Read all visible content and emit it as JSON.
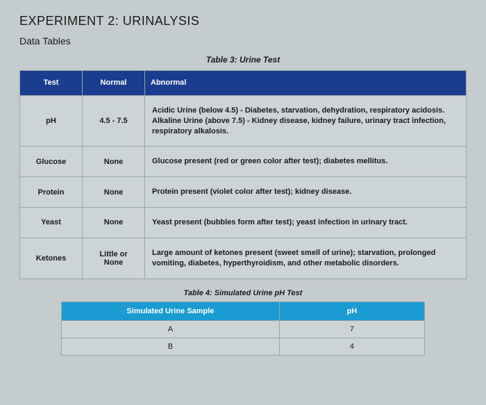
{
  "page": {
    "heading": "EXPERIMENT 2: URINALYSIS",
    "subheading": "Data Tables"
  },
  "table3": {
    "title": "Table 3: Urine Test",
    "header_bg": "#1a3d8f",
    "header_color": "#ffffff",
    "border_color": "#9aa4a7",
    "cell_bg": "#cdd4d6",
    "columns": [
      "Test",
      "Normal",
      "Abnormal"
    ],
    "rows": [
      {
        "test": "pH",
        "normal": "4.5 - 7.5",
        "abnormal": "Acidic Urine (below 4.5) - Diabetes, starvation, dehydration, respiratory acidosis.\nAlkaline Urine (above 7.5) - Kidney disease, kidney failure, urinary tract infection, respiratory alkalosis."
      },
      {
        "test": "Glucose",
        "normal": "None",
        "abnormal": "Glucose present (red or green color after test); diabetes mellitus."
      },
      {
        "test": "Protein",
        "normal": "None",
        "abnormal": "Protein present (violet color after test); kidney disease."
      },
      {
        "test": "Yeast",
        "normal": "None",
        "abnormal": "Yeast present (bubbles form after test); yeast infection in urinary tract."
      },
      {
        "test": "Ketones",
        "normal": "Little or None",
        "abnormal": "Large amount of ketones present (sweet smell of urine); starvation, prolonged vomiting, diabetes, hyperthyroidism, and other metabolic disorders."
      }
    ]
  },
  "table4": {
    "title": "Table 4: Simulated Urine pH Test",
    "header_bg": "#1a9bd1",
    "header_color": "#ffffff",
    "columns": [
      "Simulated Urine Sample",
      "pH"
    ],
    "rows": [
      {
        "sample": "A",
        "ph": "7"
      },
      {
        "sample": "B",
        "ph": "4"
      }
    ]
  },
  "background_color": "#c5ccce"
}
